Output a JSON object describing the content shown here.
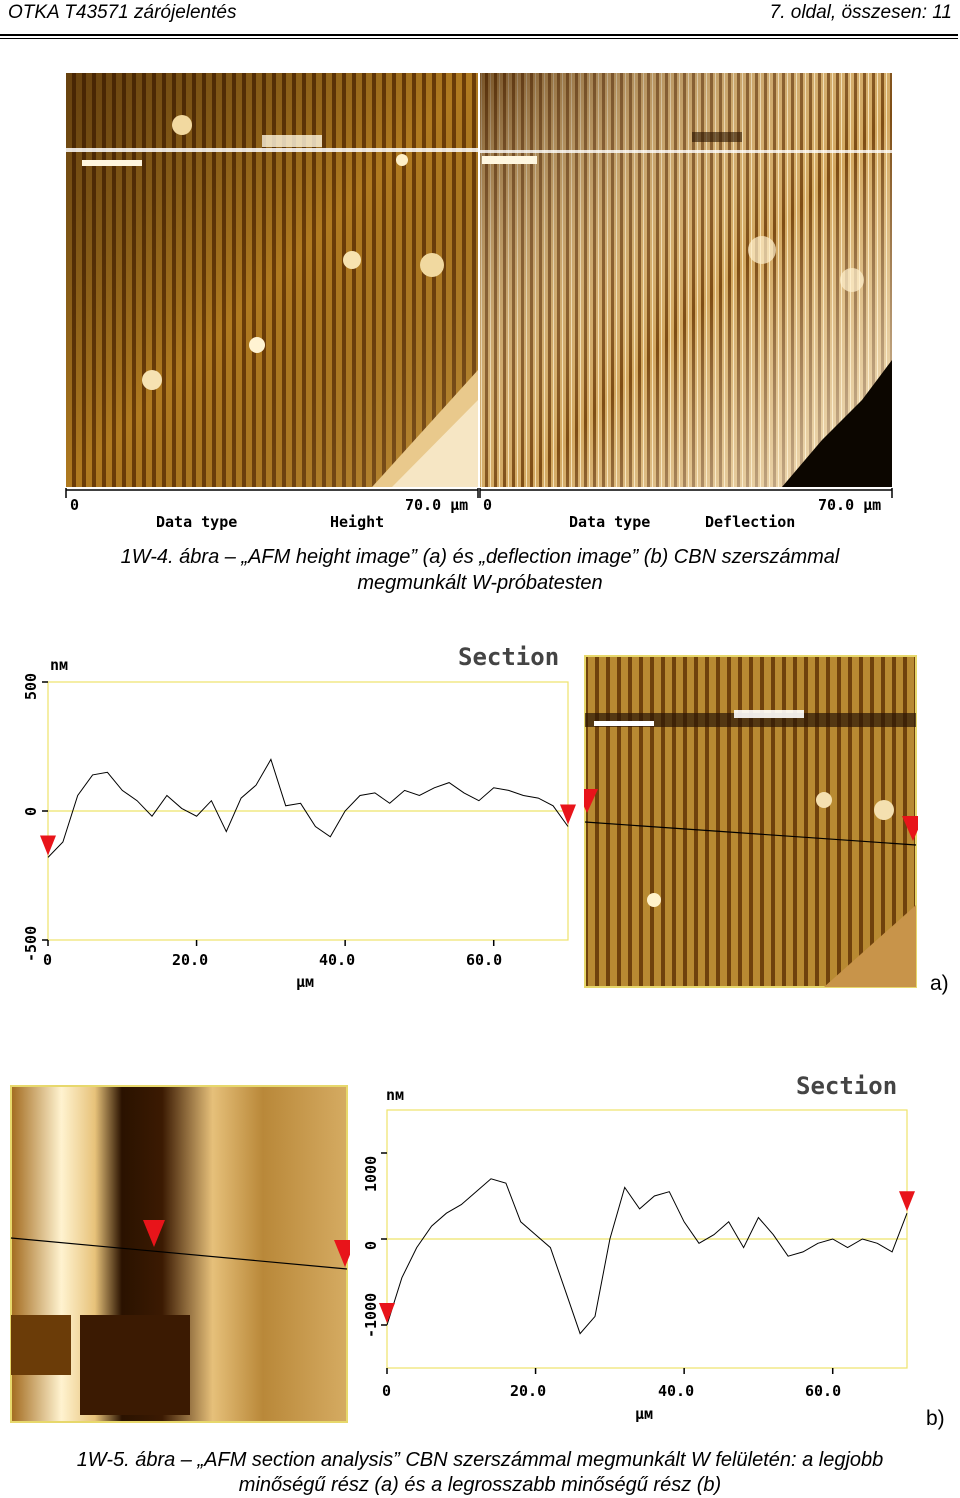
{
  "header": {
    "left": "OTKA T43571 zárójelentés",
    "right": "7. oldal, összesen: 11"
  },
  "figure1": {
    "height_image": {
      "scale_start": "0",
      "scale_end": "70.0 µm",
      "data_type_label": "Data type",
      "data_type_value": "Height"
    },
    "deflection_image": {
      "scale_start": "0",
      "scale_end": "70.0 µm",
      "data_type_label": "Data type",
      "data_type_value": "Deflection"
    },
    "caption_line1": "1W-4. ábra – „AFM height image” (a) és „deflection image” (b) CBN szerszámmal",
    "caption_line2": "megmunkált W-próbatesten"
  },
  "figure2": {
    "panel_a": {
      "label": "a)",
      "section_title": "Section",
      "y_unit": "nм",
      "x_unit": "µм",
      "y_ticks": [
        "500",
        "0",
        "-500"
      ],
      "x_ticks": [
        "0",
        "20.0",
        "40.0",
        "60.0"
      ]
    },
    "panel_b": {
      "label": "b)",
      "section_title": "Section",
      "y_unit": "nм",
      "x_unit": "µм",
      "y_ticks": [
        "1000",
        "0",
        "-1000"
      ],
      "x_ticks": [
        "0",
        "20.0",
        "40.0",
        "60.0"
      ]
    },
    "caption_line1": "1W-5. ábra – „AFM section analysis” CBN szerszámmal megmunkált W felületén: a legjobb",
    "caption_line2": "minőségű rész (a) és a legrosszabb minőségű rész (b)"
  },
  "chart_data": [
    {
      "type": "line",
      "title": "Section",
      "xlabel": "µм",
      "ylabel": "nм",
      "xlim": [
        0,
        70
      ],
      "ylim": [
        -500,
        500
      ],
      "x": [
        0,
        2,
        4,
        6,
        8,
        10,
        12,
        14,
        16,
        18,
        20,
        22,
        24,
        26,
        28,
        30,
        32,
        34,
        36,
        38,
        40,
        42,
        44,
        46,
        48,
        50,
        52,
        54,
        56,
        58,
        60,
        62,
        64,
        66,
        68,
        70
      ],
      "values": [
        -180,
        -120,
        60,
        140,
        150,
        80,
        40,
        -20,
        60,
        10,
        -20,
        40,
        -80,
        50,
        100,
        200,
        20,
        30,
        -60,
        -100,
        0,
        60,
        70,
        30,
        80,
        60,
        90,
        110,
        70,
        40,
        90,
        80,
        60,
        50,
        20,
        -60
      ]
    },
    {
      "type": "line",
      "title": "Section",
      "xlabel": "µм",
      "ylabel": "nм",
      "xlim": [
        0,
        70
      ],
      "ylim": [
        -1500,
        1500
      ],
      "x": [
        0,
        2,
        4,
        6,
        8,
        10,
        12,
        14,
        16,
        18,
        20,
        22,
        24,
        26,
        28,
        30,
        32,
        34,
        36,
        38,
        40,
        42,
        44,
        46,
        48,
        50,
        52,
        54,
        56,
        58,
        60,
        62,
        64,
        66,
        68,
        70
      ],
      "values": [
        -1000,
        -450,
        -100,
        150,
        300,
        400,
        550,
        700,
        650,
        200,
        50,
        -100,
        -600,
        -1100,
        -900,
        0,
        600,
        350,
        500,
        550,
        200,
        -50,
        50,
        200,
        -100,
        250,
        50,
        -200,
        -150,
        -50,
        0,
        -100,
        0,
        -50,
        -150,
        300
      ]
    }
  ]
}
